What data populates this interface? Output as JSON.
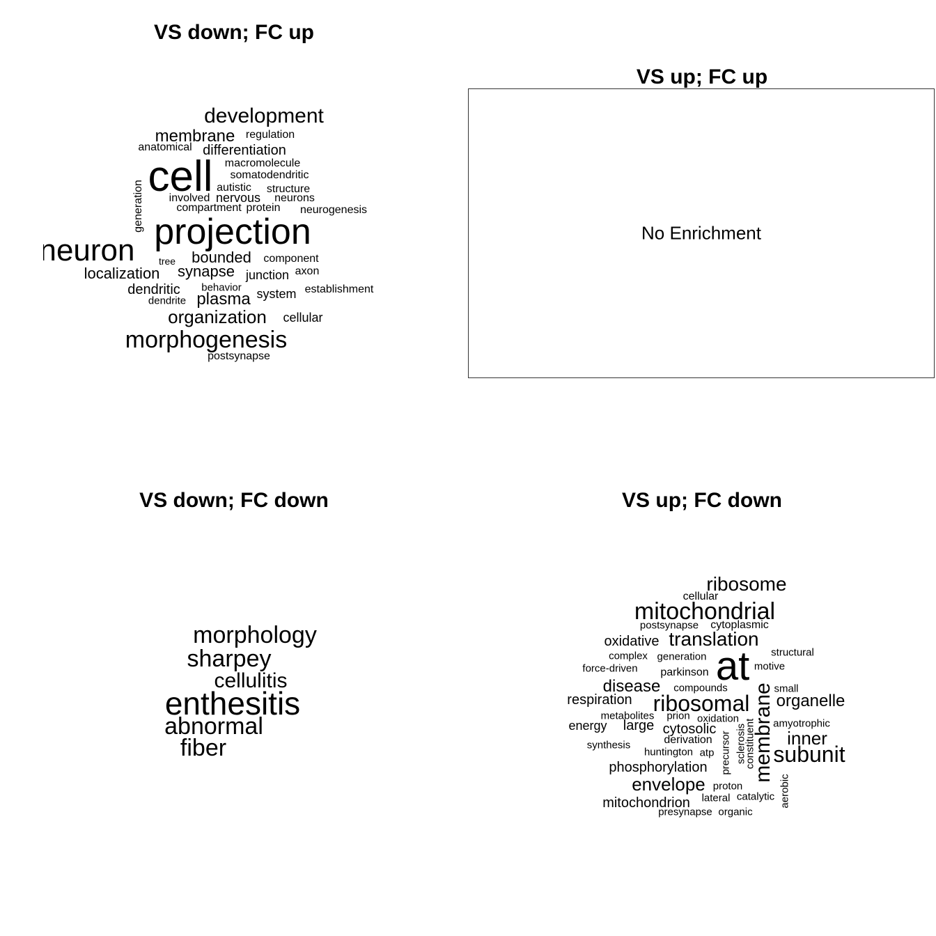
{
  "chart_data": [
    {
      "type": "wordcloud",
      "title": "VS down; FC up",
      "words": [
        "development",
        "membrane",
        "regulation",
        "anatomical",
        "differentiation",
        "cell",
        "macromolecule",
        "somatodendritic",
        "autistic",
        "structure",
        "involved",
        "nervous",
        "neurons",
        "compartment",
        "protein",
        "neurogenesis",
        "generation",
        "projection",
        "neuron",
        "tree",
        "bounded",
        "component",
        "localization",
        "synapse",
        "junction",
        "axon",
        "dendritic",
        "behavior",
        "establishment",
        "dendrite",
        "plasma",
        "system",
        "organization",
        "cellular",
        "morphogenesis",
        "postsynapse"
      ]
    },
    {
      "type": "wordcloud",
      "title": "VS up; FC up",
      "words": [],
      "message": "No Enrichment"
    },
    {
      "type": "wordcloud",
      "title": "VS down; FC down",
      "words": [
        "morphology",
        "sharpey",
        "cellulitis",
        "enthesitis",
        "abnormal",
        "fiber"
      ]
    },
    {
      "type": "wordcloud",
      "title": "VS up; FC down",
      "words": [
        "ribosome",
        "cellular",
        "mitochondrial",
        "postsynapse",
        "cytoplasmic",
        "oxidative",
        "translation",
        "structural",
        "complex",
        "generation",
        "at",
        "force-driven",
        "motive",
        "parkinson",
        "disease",
        "compounds",
        "small",
        "respiration",
        "ribosomal",
        "membrane",
        "organelle",
        "metabolites",
        "prion",
        "oxidation",
        "energy",
        "large",
        "cytosolic",
        "amyotrophic",
        "inner",
        "derivation",
        "sclerosis",
        "constituent",
        "precursor",
        "synthesis",
        "huntington",
        "atp",
        "subunit",
        "phosphorylation",
        "aerobic",
        "envelope",
        "proton",
        "lateral",
        "catalytic",
        "mitochondrion",
        "presynapse",
        "organic"
      ]
    }
  ]
}
